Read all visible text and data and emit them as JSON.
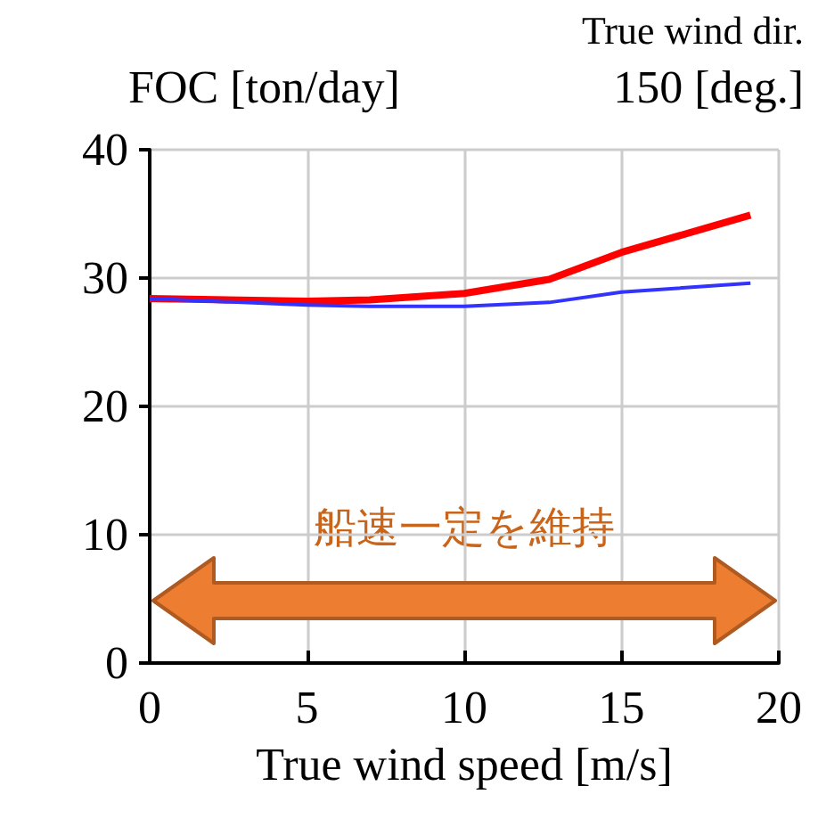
{
  "chart_data": {
    "type": "line",
    "ylabel": "FOC [ton/day]",
    "xlabel": "True wind speed [m/s]",
    "annotations": [
      "True wind dir.",
      "150 [deg.]",
      "船速一定を維持"
    ],
    "xlim": [
      0,
      20
    ],
    "xticks": [
      0,
      5,
      10,
      15,
      20
    ],
    "ylim": [
      0,
      40
    ],
    "yticks": [
      0,
      10,
      20,
      30,
      40
    ],
    "grid": true,
    "marker": "none",
    "series": [
      {
        "color": "#ff0000",
        "x": [
          0,
          5,
          7,
          10,
          12.7,
          15,
          19.1
        ],
        "values": [
          28.4,
          28.2,
          28.3,
          28.8,
          29.9,
          32.0,
          34.9
        ]
      },
      {
        "color": "#3333ff",
        "x": [
          0,
          5,
          7,
          10,
          12.7,
          15,
          19.1
        ],
        "values": [
          28.4,
          27.9,
          27.8,
          27.8,
          28.1,
          28.9,
          29.6
        ]
      }
    ]
  }
}
